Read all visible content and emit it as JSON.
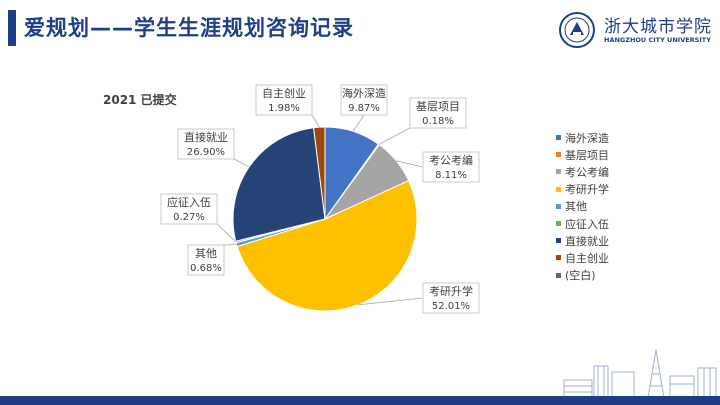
{
  "header": {
    "title": "爱规划——学生生涯规划咨询记录",
    "logo_name": "浙大城市学院",
    "logo_en": "HANGZHOU CITY UNIVERSITY"
  },
  "colors": {
    "accent": "#1e3f86"
  },
  "chart_data": {
    "type": "pie",
    "title": "2021 已提交",
    "slices": [
      {
        "label": "海外深造",
        "value": 9.87,
        "display": "9.87%",
        "color": "#4472c4"
      },
      {
        "label": "基层项目",
        "value": 0.18,
        "display": "0.18%",
        "color": "#ed7d31"
      },
      {
        "label": "考公考编",
        "value": 8.11,
        "display": "8.11%",
        "color": "#a5a5a5"
      },
      {
        "label": "考研升学",
        "value": 52.01,
        "display": "52.01%",
        "color": "#ffc000"
      },
      {
        "label": "其他",
        "value": 0.68,
        "display": "0.68%",
        "color": "#5b9bd5"
      },
      {
        "label": "应征入伍",
        "value": 0.27,
        "display": "0.27%",
        "color": "#70ad47"
      },
      {
        "label": "直接就业",
        "value": 26.9,
        "display": "26.90%",
        "color": "#264478"
      },
      {
        "label": "自主创业",
        "value": 1.98,
        "display": "1.98%",
        "color": "#9e480e"
      }
    ],
    "legend": [
      "海外深造",
      "基层项目",
      "考公考编",
      "考研升学",
      "其他",
      "应征入伍",
      "直接就业",
      "自主创业",
      "(空白)"
    ],
    "legend_colors": [
      "#4472c4",
      "#ed7d31",
      "#a5a5a5",
      "#ffc000",
      "#5b9bd5",
      "#70ad47",
      "#264478",
      "#9e480e",
      "#636363"
    ],
    "legend_position": "right"
  }
}
